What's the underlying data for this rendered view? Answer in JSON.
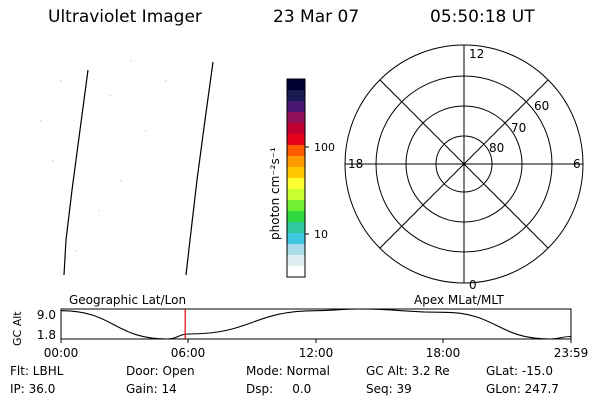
{
  "header": {
    "title": "Ultraviolet Imager",
    "date": "23 Mar 07",
    "time": "05:50:18 UT"
  },
  "colorbar": {
    "label": "photon cm⁻²s⁻¹",
    "tick_labels": [
      "100",
      "10"
    ],
    "colors": [
      "#000030",
      "#1a1a52",
      "#4a1870",
      "#90105a",
      "#c00030",
      "#e80018",
      "#ff5a00",
      "#ff9a00",
      "#ffc800",
      "#ffff30",
      "#c8ff30",
      "#70f030",
      "#30d840",
      "#30c8a0",
      "#40c8e0",
      "#a8dce8",
      "#e0eef2",
      "#ffffff"
    ]
  },
  "polar_plot": {
    "mlt_labels": {
      "top": "12",
      "left": "18",
      "right": "6",
      "bottom": "0"
    },
    "lat_labels": [
      "60",
      "70",
      "80"
    ]
  },
  "timeline": {
    "left_title": "Geographic Lat/Lon",
    "right_title": "Apex MLat/MLT",
    "y_axis_label": "GC Alt",
    "y_ticks": [
      "9.0",
      "1.8"
    ],
    "x_ticks": [
      "00:00",
      "06:00",
      "12:00",
      "18:00",
      "23:59"
    ],
    "marker_color": "#e00000"
  },
  "chart_data": {
    "type": "line",
    "title": "",
    "xlabel": "",
    "ylabel": "GC Alt",
    "x": [
      "00:00",
      "05:00",
      "06:00",
      "12:00",
      "14:00",
      "18:00",
      "23:00",
      "23:59"
    ],
    "series": [
      {
        "values": [
          8.6,
          1.8,
          3.0,
          8.6,
          9.0,
          8.2,
          1.8,
          2.4
        ]
      }
    ],
    "ylim": [
      1.8,
      9.0
    ],
    "marker_time": "05:50:18"
  },
  "info": {
    "filter": "Flt: LBHL",
    "ip": "IP: 36.0",
    "door": "Door: Open",
    "gain": "Gain: 14",
    "mode": "Mode: Normal",
    "dsp": "Dsp:     0.0",
    "gc_alt": "GC Alt: 3.2 Re",
    "seq": "Seq: 39",
    "glat": "GLat: -15.0",
    "glon": "GLon: 247.7"
  }
}
